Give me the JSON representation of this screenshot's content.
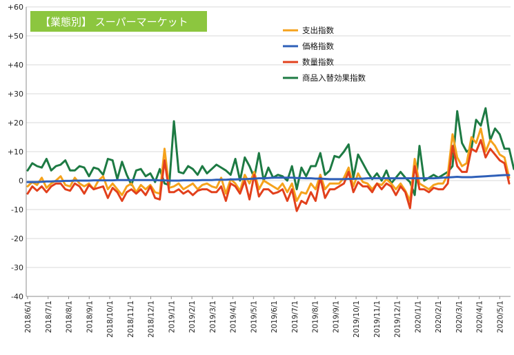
{
  "chart_data": {
    "type": "line",
    "title": "【業態別】 スーパーマーケット",
    "xlabel": "",
    "ylabel": "",
    "ylim": [
      -40,
      60
    ],
    "yticks": [
      "+60",
      "+50",
      "+40",
      "+30",
      "+20",
      "+10",
      "0",
      "-10",
      "-20",
      "-30",
      "-40"
    ],
    "ytick_values": [
      60,
      50,
      40,
      30,
      20,
      10,
      0,
      -10,
      -20,
      -30,
      -40
    ],
    "x_ticks": [
      "2018/6/1",
      "2018/7/1",
      "2018/8/1",
      "2018/9/1",
      "2018/10/1",
      "2018/11/1",
      "2018/12/1",
      "2019/1/1",
      "2019/2/1",
      "2019/3/1",
      "2019/4/1",
      "2019/5/1",
      "2019/6/1",
      "2019/7/1",
      "2019/8/1",
      "2019/9/1",
      "2019/10/1",
      "2019/11/1",
      "2019/12/1",
      "2020/1/1",
      "2020/2/1",
      "2020/3/1",
      "2020/4/1",
      "2020/5/1"
    ],
    "grid": "horizontal",
    "legend_position": "top-center",
    "x_weekly_from": "2018/6/1",
    "series": [
      {
        "name": "支出指数",
        "color": "#f5a21c",
        "values": [
          -2,
          -0.5,
          -1.5,
          1,
          -2.5,
          -1,
          0,
          1.5,
          -1.5,
          -2,
          1,
          -1,
          -2,
          -1,
          -3,
          0,
          1.5,
          -3,
          -1,
          -3,
          -5,
          -2,
          -1,
          -4,
          -1.5,
          -3,
          -1.5,
          -4,
          -4.5,
          11,
          -2.5,
          -2,
          -1,
          -3,
          -2,
          -1,
          -3,
          -1.5,
          -1,
          -2,
          -2.5,
          1,
          -4.5,
          0.5,
          -1,
          -3.5,
          2,
          -1,
          3,
          -3,
          0,
          -1,
          -2,
          -3,
          -1,
          -4,
          -1,
          -7,
          -4,
          -4.5,
          -1,
          -3,
          2,
          -3,
          -1,
          -1,
          -1,
          1,
          4.5,
          -2,
          2.5,
          -0.5,
          -1,
          -3,
          -1,
          -1.5,
          0.5,
          -1,
          -3,
          -1,
          -3.5,
          -7,
          7.5,
          -1,
          -2,
          -3,
          -1.5,
          -1,
          -1,
          2,
          16,
          8,
          5,
          6,
          15,
          13,
          18,
          10,
          14,
          12,
          9,
          8,
          1
        ]
      },
      {
        "name": "価格指数",
        "color": "#2e5fb8",
        "values": [
          -0.5,
          -0.5,
          -0.5,
          -0.4,
          -0.3,
          -0.3,
          -0.2,
          -0.2,
          -0.1,
          -0.1,
          0,
          0,
          0,
          0,
          0.1,
          0.1,
          0.1,
          0.1,
          0.1,
          0.2,
          0.2,
          0.2,
          0.2,
          0.2,
          0.2,
          0.2,
          0.2,
          0.2,
          0.1,
          0.1,
          0,
          0,
          0,
          0.1,
          0.1,
          0.1,
          0.1,
          0.2,
          0.2,
          0.2,
          0.3,
          0.3,
          0.3,
          0.4,
          0.4,
          0.5,
          0.5,
          0.6,
          0.7,
          0.8,
          0.8,
          0.9,
          1,
          1,
          1,
          1,
          1,
          0.9,
          0.9,
          0.8,
          0.8,
          0.7,
          0.7,
          0.6,
          0.5,
          0.5,
          0.5,
          0.5,
          0.6,
          0.6,
          0.7,
          0.7,
          0.8,
          0.8,
          0.8,
          0.8,
          0.8,
          0.8,
          0.8,
          0.8,
          0.8,
          0.8,
          0.8,
          0.8,
          0.8,
          0.8,
          0.8,
          0.9,
          1,
          1.1,
          1.2,
          1.3,
          1.2,
          1.2,
          1.2,
          1.3,
          1.4,
          1.5,
          1.6,
          1.7,
          1.8,
          1.9,
          1.9
        ]
      },
      {
        "name": "数量指数",
        "color": "#e2401c",
        "values": [
          -4.5,
          -2,
          -3.5,
          -2,
          -4,
          -2,
          -1,
          -1,
          -3,
          -3.5,
          -1,
          -2,
          -4.5,
          -1.5,
          -3,
          -2.5,
          -2,
          -6,
          -2.5,
          -4,
          -7,
          -4,
          -3,
          -4.5,
          -3,
          -5,
          -2,
          -6,
          -6.5,
          7,
          -4,
          -4,
          -3,
          -4.5,
          -3.5,
          -5,
          -3.5,
          -3,
          -3,
          -4,
          -4,
          -2,
          -7,
          -1,
          -2,
          -4.5,
          0,
          -6.5,
          2,
          -5.5,
          -3,
          -3,
          -4.5,
          -4,
          -3,
          -7,
          -3,
          -10.5,
          -7,
          -8,
          -4,
          -7,
          1,
          -6,
          -3,
          -3,
          -2,
          -1,
          3,
          -4,
          -0.5,
          -2,
          -2,
          -4,
          -1,
          -3,
          -1,
          -2,
          -5,
          -2,
          -4,
          -9.5,
          5,
          -3,
          -3,
          -4,
          -2.5,
          -3,
          -3,
          -1,
          12,
          5,
          3,
          3,
          11,
          10,
          14,
          8,
          11,
          9,
          7,
          6,
          -1
        ]
      },
      {
        "name": "商品入替効果指数",
        "color": "#1d7a43",
        "values": [
          3.5,
          6,
          5,
          4.5,
          7.5,
          3.5,
          5,
          5.5,
          7,
          3.5,
          3.5,
          5,
          4.5,
          1.5,
          4.5,
          4,
          2,
          7.5,
          7,
          0.5,
          6.5,
          2,
          -1.5,
          3.5,
          4,
          1.5,
          2.5,
          -0.5,
          4,
          -1,
          -1.5,
          20.5,
          3,
          2.5,
          5,
          4,
          2,
          5,
          2.5,
          4,
          5.5,
          4.5,
          3.5,
          2,
          7.5,
          0,
          8,
          5,
          1,
          9.5,
          0,
          4.5,
          1,
          2,
          1.5,
          0,
          5,
          -3,
          4.5,
          1.5,
          5,
          5,
          9.5,
          2,
          3.5,
          8.5,
          8,
          10,
          12.5,
          1,
          9,
          6,
          3,
          0.5,
          2.5,
          0,
          3.5,
          -1,
          1,
          3,
          1,
          -0.5,
          -5,
          12,
          0,
          1,
          2,
          1,
          2,
          3,
          5,
          24,
          13,
          10,
          11,
          21,
          19,
          25,
          14,
          18,
          16,
          11,
          11,
          4
        ]
      }
    ]
  }
}
